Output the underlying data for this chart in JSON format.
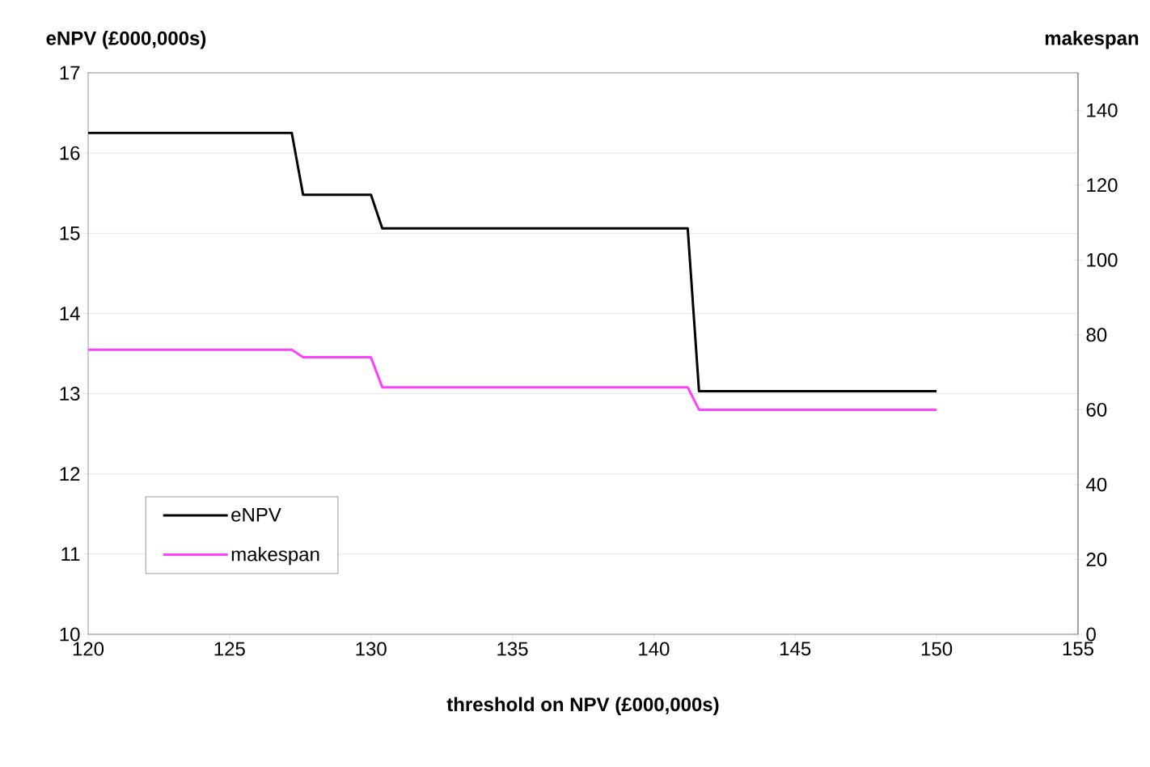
{
  "chart_data": {
    "type": "line",
    "xlabel": "threshold on NPV (£000,000s)",
    "ylabel": "eNPV (£000,000s)",
    "y2label": "makespan",
    "x": [
      120,
      127.2,
      127.6,
      130,
      130.4,
      141.2,
      141.6,
      150
    ],
    "series": [
      {
        "name": "eNPV",
        "color": "#000000",
        "values": [
          16.25,
          16.25,
          15.48,
          15.48,
          15.06,
          15.06,
          13.03,
          13.03
        ]
      },
      {
        "name": "makespan",
        "color": "#ff40ff",
        "axis": "y2",
        "values": [
          76,
          76,
          74,
          74,
          66,
          66,
          60,
          60
        ]
      }
    ],
    "xlim": [
      120,
      155
    ],
    "xticks": [
      120,
      125,
      130,
      135,
      140,
      145,
      150,
      155
    ],
    "ylim": [
      10,
      17
    ],
    "yticks": [
      10,
      11,
      12,
      13,
      14,
      15,
      16,
      17
    ],
    "y2lim": [
      0,
      150
    ],
    "y2ticks": [
      0,
      20,
      40,
      60,
      80,
      100,
      120,
      140
    ],
    "grid": "y",
    "legend": "bottom left",
    "line_style": "solid"
  }
}
